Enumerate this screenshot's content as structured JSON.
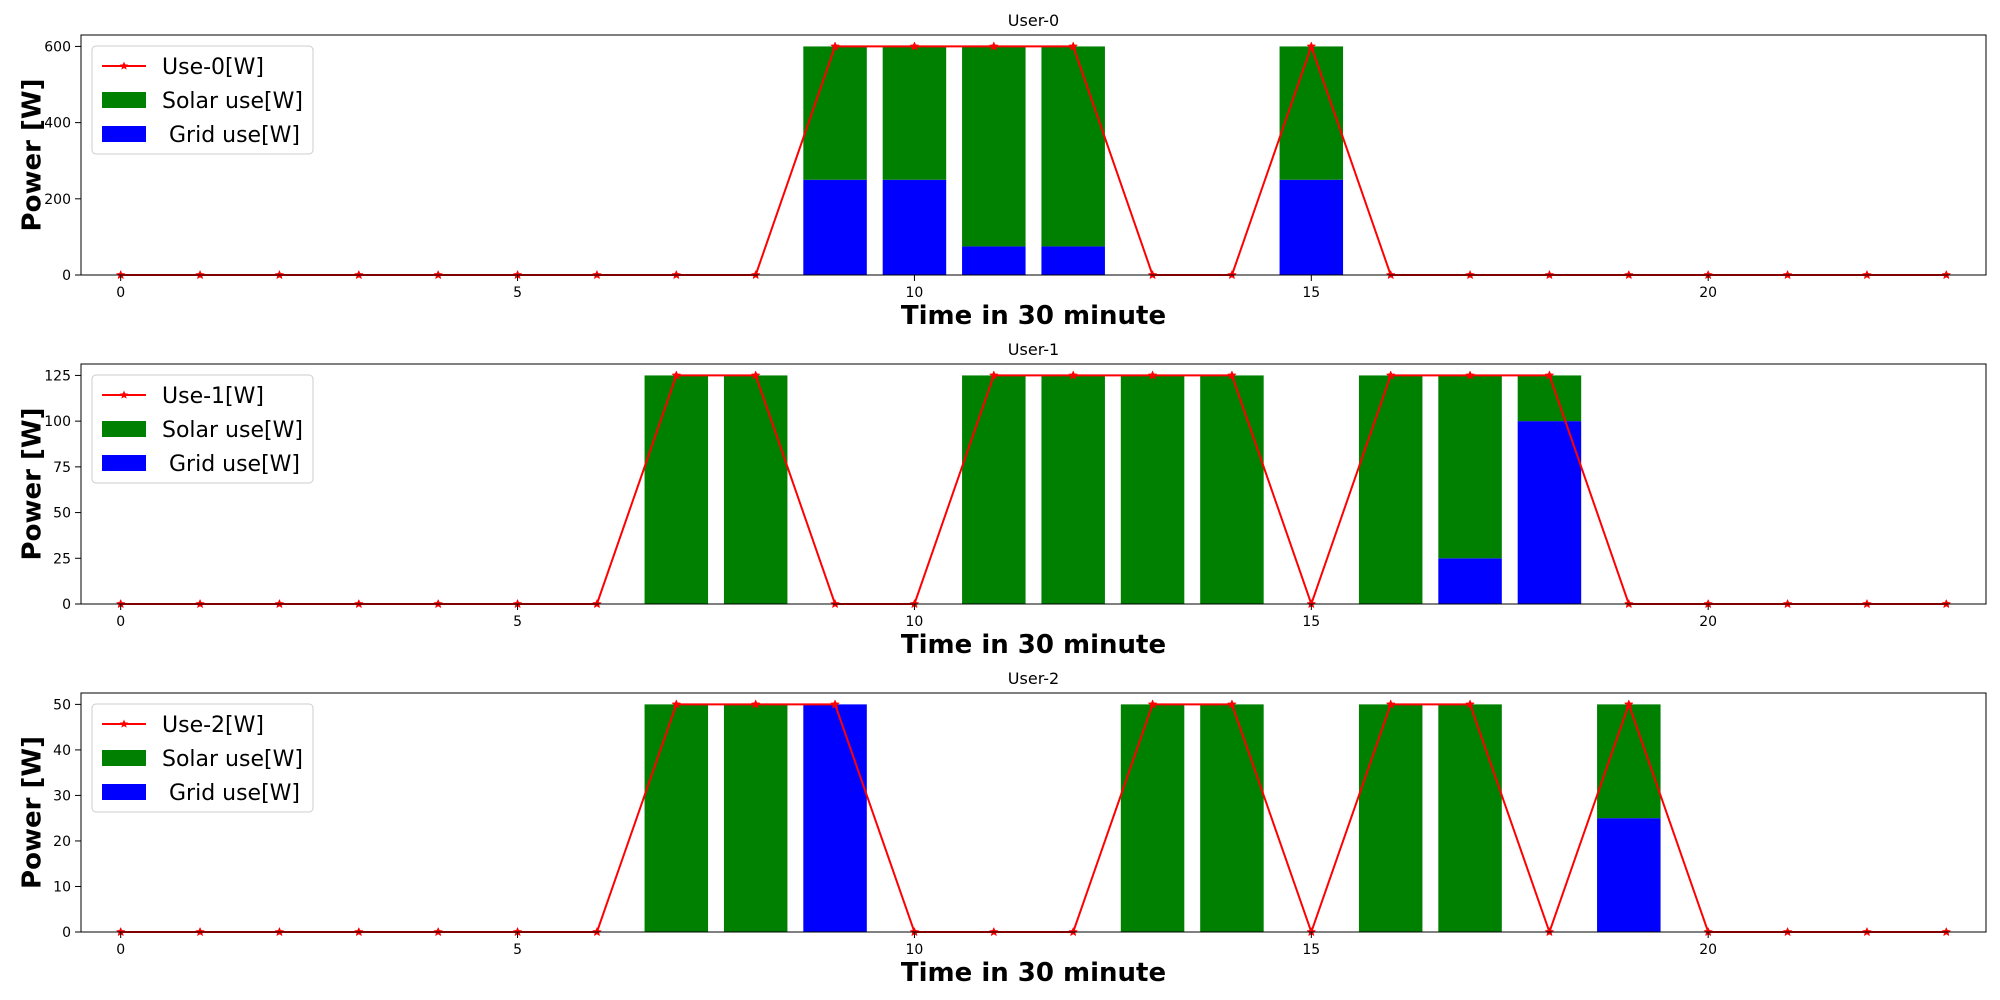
{
  "colors": {
    "solar": "#008000",
    "grid": "#0000ff",
    "use": "#ff0000"
  },
  "chart_data": [
    {
      "type": "bar",
      "stacked": true,
      "title": "User-0",
      "xlabel": "Time in 30 minute",
      "ylabel": "Power [W]",
      "xlim": [
        -0.5,
        23.5
      ],
      "ylim": [
        0,
        630
      ],
      "xticks": [
        0,
        5,
        10,
        15,
        20
      ],
      "yticks": [
        0,
        200,
        400,
        600
      ],
      "legend": "upper-left",
      "x": [
        0,
        1,
        2,
        3,
        4,
        5,
        6,
        7,
        8,
        9,
        10,
        11,
        12,
        13,
        14,
        15,
        16,
        17,
        18,
        19,
        20,
        21,
        22,
        23
      ],
      "series": [
        {
          "name": "Use-0[W]",
          "kind": "line",
          "values": [
            0,
            0,
            0,
            0,
            0,
            0,
            0,
            0,
            0,
            600,
            600,
            600,
            600,
            0,
            0,
            600,
            0,
            0,
            0,
            0,
            0,
            0,
            0,
            0
          ]
        },
        {
          "name": "Solar use[W]",
          "kind": "bar",
          "values": [
            0,
            0,
            0,
            0,
            0,
            0,
            0,
            0,
            0,
            350,
            350,
            525,
            525,
            0,
            0,
            350,
            0,
            0,
            0,
            0,
            0,
            0,
            0,
            0
          ]
        },
        {
          "name": " Grid use[W]",
          "kind": "bar",
          "values": [
            0,
            0,
            0,
            0,
            0,
            0,
            0,
            0,
            0,
            250,
            250,
            75,
            75,
            0,
            0,
            250,
            0,
            0,
            0,
            0,
            0,
            0,
            0,
            0
          ]
        }
      ]
    },
    {
      "type": "bar",
      "stacked": true,
      "title": "User-1",
      "xlabel": "Time in 30 minute",
      "ylabel": "Power [W]",
      "xlim": [
        -0.5,
        23.5
      ],
      "ylim": [
        0,
        131.25
      ],
      "xticks": [
        0,
        5,
        10,
        15,
        20
      ],
      "yticks": [
        0,
        25,
        50,
        75,
        100,
        125
      ],
      "legend": "upper-left",
      "x": [
        0,
        1,
        2,
        3,
        4,
        5,
        6,
        7,
        8,
        9,
        10,
        11,
        12,
        13,
        14,
        15,
        16,
        17,
        18,
        19,
        20,
        21,
        22,
        23
      ],
      "series": [
        {
          "name": "Use-1[W]",
          "kind": "line",
          "values": [
            0,
            0,
            0,
            0,
            0,
            0,
            0,
            125,
            125,
            0,
            0,
            125,
            125,
            125,
            125,
            0,
            125,
            125,
            125,
            0,
            0,
            0,
            0,
            0
          ]
        },
        {
          "name": "Solar use[W]",
          "kind": "bar",
          "values": [
            0,
            0,
            0,
            0,
            0,
            0,
            0,
            125,
            125,
            0,
            0,
            125,
            125,
            125,
            125,
            0,
            125,
            100,
            25,
            0,
            0,
            0,
            0,
            0
          ]
        },
        {
          "name": " Grid use[W]",
          "kind": "bar",
          "values": [
            0,
            0,
            0,
            0,
            0,
            0,
            0,
            0,
            0,
            0,
            0,
            0,
            0,
            0,
            0,
            0,
            0,
            25,
            100,
            0,
            0,
            0,
            0,
            0
          ]
        }
      ]
    },
    {
      "type": "bar",
      "stacked": true,
      "title": "User-2",
      "xlabel": "Time in 30 minute",
      "ylabel": "Power [W]",
      "xlim": [
        -0.5,
        23.5
      ],
      "ylim": [
        0,
        52.5
      ],
      "xticks": [
        0,
        5,
        10,
        15,
        20
      ],
      "yticks": [
        0,
        10,
        20,
        30,
        40,
        50
      ],
      "legend": "upper-left",
      "x": [
        0,
        1,
        2,
        3,
        4,
        5,
        6,
        7,
        8,
        9,
        10,
        11,
        12,
        13,
        14,
        15,
        16,
        17,
        18,
        19,
        20,
        21,
        22,
        23
      ],
      "series": [
        {
          "name": "Use-2[W]",
          "kind": "line",
          "values": [
            0,
            0,
            0,
            0,
            0,
            0,
            0,
            50,
            50,
            50,
            0,
            0,
            0,
            50,
            50,
            0,
            50,
            50,
            0,
            50,
            0,
            0,
            0,
            0
          ]
        },
        {
          "name": "Solar use[W]",
          "kind": "bar",
          "values": [
            0,
            0,
            0,
            0,
            0,
            0,
            0,
            50,
            50,
            0,
            0,
            0,
            0,
            50,
            50,
            0,
            50,
            50,
            0,
            25,
            0,
            0,
            0,
            0
          ]
        },
        {
          "name": " Grid use[W]",
          "kind": "bar",
          "values": [
            0,
            0,
            0,
            0,
            0,
            0,
            0,
            0,
            0,
            50,
            0,
            0,
            0,
            0,
            0,
            0,
            0,
            0,
            0,
            25,
            0,
            0,
            0,
            0
          ]
        }
      ]
    }
  ]
}
